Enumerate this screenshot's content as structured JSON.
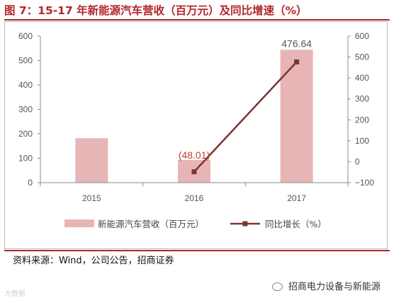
{
  "title": "图 7：15-17 年新能源汽车营收（百万元）及同比增速（%）",
  "source": "资料来源：Wind，公司公告，招商证券",
  "watermark_left": "大数据",
  "watermark_right": "招商电力设备与新能源",
  "colors": {
    "bar": "#e8b5b6",
    "line": "#7d3431",
    "title": "#b3262b"
  },
  "chart_data": {
    "type": "bar",
    "categories": [
      "2015",
      "2016",
      "2017"
    ],
    "series": [
      {
        "name": "新能源汽车营收（百万元）",
        "type": "bar",
        "axis": "left",
        "values": [
          182,
          93,
          544
        ]
      },
      {
        "name": "同比增长（%）",
        "type": "line",
        "axis": "right",
        "values": [
          null,
          -48.01,
          476.64
        ]
      }
    ],
    "data_labels": [
      "(48.01)",
      "476.64"
    ],
    "left_axis": {
      "ylim": [
        0,
        600
      ],
      "ticks": [
        "0",
        "100",
        "200",
        "300",
        "400",
        "500",
        "600"
      ]
    },
    "right_axis": {
      "ylim": [
        -100,
        600
      ],
      "ticks": [
        "−100",
        "0",
        "100",
        "200",
        "300",
        "400",
        "500",
        "600"
      ]
    },
    "legend_position": "bottom",
    "grid": false
  }
}
